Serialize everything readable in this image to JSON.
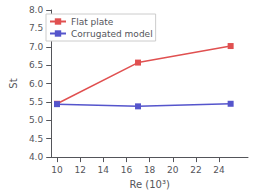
{
  "chart_data": {
    "type": "line",
    "xlabel": "Re (10³)",
    "ylabel": "St",
    "series": [
      {
        "name": "Flat plate",
        "color": "#e05050",
        "x": [
          10,
          17,
          25
        ],
        "values": [
          5.45,
          6.57,
          7.02
        ],
        "marker": "square",
        "line_style": "solid"
      },
      {
        "name": "Corrugated model",
        "color": "#5555cc",
        "x": [
          10,
          17,
          25
        ],
        "values": [
          5.44,
          5.38,
          5.45
        ],
        "marker": "square",
        "line_style": "solid"
      }
    ],
    "xlim": [
      9.5,
      26.5
    ],
    "ylim": [
      4.0,
      8.0
    ],
    "xticks": [
      10,
      12,
      14,
      16,
      18,
      20,
      22,
      24
    ],
    "yticks": [
      {
        "value": 4.0,
        "label": "4.0"
      },
      4.5,
      {
        "value": 5.0,
        "label": "5.0"
      },
      5.5,
      {
        "value": 6.0,
        "label": "6.0"
      },
      6.5,
      {
        "value": 7.0,
        "label": "7.0"
      },
      7.5,
      {
        "value": 8.0,
        "label": "8.0"
      }
    ],
    "grid": false,
    "legend": "upper left"
  }
}
